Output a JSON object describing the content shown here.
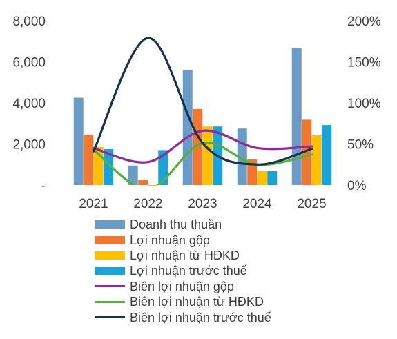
{
  "chart_data": {
    "type": "bar",
    "categories": [
      "2021",
      "2022",
      "2023",
      "2024",
      "2025"
    ],
    "y_left": {
      "ylim": [
        0,
        8000
      ],
      "ticks": [
        "-",
        "2,000",
        "4,000",
        "6,000",
        "8,000"
      ],
      "tick_values": [
        0,
        2000,
        4000,
        6000,
        8000
      ]
    },
    "y_right": {
      "ylim": [
        0,
        200
      ],
      "ticks": [
        "0%",
        "50%",
        "100%",
        "150%",
        "200%"
      ],
      "tick_values": [
        0,
        50,
        100,
        150,
        200
      ]
    },
    "bar_series": [
      {
        "name": "Doanh thu thuần",
        "color": "#6b9bc7",
        "values": [
          4250,
          950,
          5600,
          2750,
          6680
        ]
      },
      {
        "name": "Lợi nhuận gộp",
        "color": "#f0772f",
        "values": [
          2450,
          250,
          3700,
          1250,
          3180
        ]
      },
      {
        "name": "Lợi nhuận từ HĐKD",
        "color": "#ffc000",
        "values": [
          1850,
          -50,
          2850,
          680,
          2420
        ]
      },
      {
        "name": "Lợi nhuận trước thuế",
        "color": "#1ba3d8",
        "values": [
          1750,
          1700,
          2850,
          680,
          2920
        ]
      }
    ],
    "line_series": [
      {
        "name": "Biên lợi nhuận gộp",
        "color": "#8e2d97",
        "axis": "right",
        "values": [
          45,
          28,
          66,
          45,
          47
        ]
      },
      {
        "name": "Biên lợi nhuận từ HĐKD",
        "color": "#55b13b",
        "axis": "right",
        "values": [
          43,
          -5,
          51,
          25,
          37
        ]
      },
      {
        "name": "Biên lợi nhuận trước thuế",
        "color": "#17324b",
        "axis": "right",
        "values": [
          41,
          179,
          51,
          25,
          44
        ]
      }
    ],
    "grid": false,
    "legend_placement": "bottom"
  }
}
